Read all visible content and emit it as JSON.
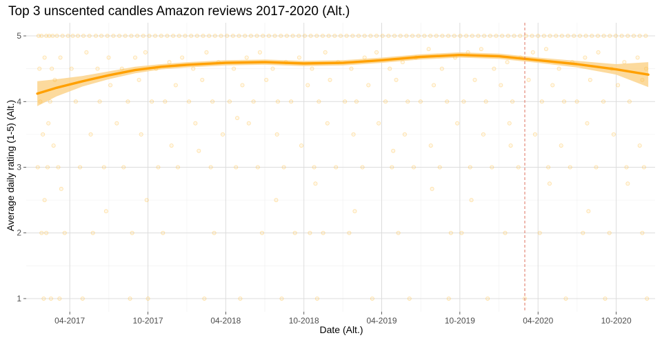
{
  "chart_data": {
    "type": "scatter",
    "title": "Top 3 unscented candles Amazon reviews 2017-2020 (Alt.)",
    "xlabel": "Date (Alt.)",
    "ylabel": "Average daily rating (1-5) (Alt.)",
    "xlim": [
      "2016-12-20",
      "2020-12-31"
    ],
    "ylim": [
      0.8,
      5.2
    ],
    "x_ticks": [
      "2017-04-01",
      "2017-10-01",
      "2018-04-01",
      "2018-10-01",
      "2019-04-01",
      "2019-10-01",
      "2020-04-01",
      "2020-10-01"
    ],
    "x_tick_labels": [
      "04-2017",
      "10-2017",
      "04-2018",
      "10-2018",
      "04-2019",
      "10-2019",
      "04-2020",
      "10-2020"
    ],
    "y_ticks": [
      1,
      2,
      3,
      4,
      5
    ],
    "y_tick_labels": [
      "1",
      "2",
      "3",
      "4",
      "5"
    ],
    "grid": true,
    "colors": {
      "points": "#ffbf40",
      "smooth_line": "#ffa000",
      "ribbon": "#fcd48c",
      "vline": "#e0725e"
    },
    "reference_line": {
      "x": "2020-03-01",
      "style": "dashed"
    },
    "smooth": {
      "x": [
        "2017-01-15",
        "2017-03-01",
        "2017-05-01",
        "2017-07-01",
        "2017-09-01",
        "2017-11-01",
        "2018-01-01",
        "2018-04-01",
        "2018-07-01",
        "2018-10-01",
        "2019-01-01",
        "2019-04-01",
        "2019-07-01",
        "2019-10-01",
        "2020-01-01",
        "2020-04-01",
        "2020-07-01",
        "2020-10-01",
        "2020-12-15"
      ],
      "y": [
        4.12,
        4.21,
        4.31,
        4.4,
        4.48,
        4.53,
        4.56,
        4.59,
        4.6,
        4.58,
        4.59,
        4.63,
        4.68,
        4.71,
        4.69,
        4.63,
        4.57,
        4.49,
        4.41
      ],
      "lower": [
        3.93,
        4.08,
        4.23,
        4.34,
        4.43,
        4.49,
        4.52,
        4.55,
        4.56,
        4.54,
        4.55,
        4.59,
        4.64,
        4.67,
        4.65,
        4.59,
        4.52,
        4.41,
        4.22
      ],
      "upper": [
        4.31,
        4.34,
        4.39,
        4.46,
        4.53,
        4.57,
        4.6,
        4.63,
        4.64,
        4.62,
        4.63,
        4.67,
        4.72,
        4.75,
        4.73,
        4.67,
        4.62,
        4.57,
        4.6
      ]
    },
    "points": {
      "x": [
        "2017-01-18",
        "2017-01-25",
        "2017-02-05",
        "2017-02-12",
        "2017-02-20",
        "2017-03-02",
        "2017-03-15",
        "2017-03-28",
        "2017-04-08",
        "2017-04-20",
        "2017-05-03",
        "2017-05-17",
        "2017-06-01",
        "2017-06-14",
        "2017-06-28",
        "2017-07-12",
        "2017-07-26",
        "2017-08-09",
        "2017-08-23",
        "2017-09-06",
        "2017-09-20",
        "2017-10-04",
        "2017-10-18",
        "2017-11-01",
        "2017-11-15",
        "2017-11-29",
        "2017-12-13",
        "2017-12-27",
        "2018-01-10",
        "2018-01-24",
        "2018-02-07",
        "2018-02-21",
        "2018-03-07",
        "2018-03-21",
        "2018-04-04",
        "2018-04-18",
        "2018-05-02",
        "2018-05-16",
        "2018-05-30",
        "2018-06-13",
        "2018-06-27",
        "2018-07-11",
        "2018-07-25",
        "2018-08-08",
        "2018-08-22",
        "2018-09-05",
        "2018-09-19",
        "2018-10-03",
        "2018-10-17",
        "2018-10-31",
        "2018-11-14",
        "2018-11-28",
        "2018-12-12",
        "2018-12-26",
        "2019-01-09",
        "2019-01-23",
        "2019-02-06",
        "2019-02-20",
        "2019-03-06",
        "2019-03-20",
        "2019-04-03",
        "2019-04-17",
        "2019-05-01",
        "2019-05-15",
        "2019-05-29",
        "2019-06-12",
        "2019-06-26",
        "2019-07-10",
        "2019-07-24",
        "2019-08-07",
        "2019-08-21",
        "2019-09-04",
        "2019-09-18",
        "2019-10-02",
        "2019-10-16",
        "2019-10-30",
        "2019-11-13",
        "2019-11-27",
        "2019-12-11",
        "2019-12-25",
        "2020-01-08",
        "2020-01-22",
        "2020-02-05",
        "2020-02-19",
        "2020-03-04",
        "2020-03-18",
        "2020-04-01",
        "2020-04-15",
        "2020-04-29",
        "2020-05-13",
        "2020-05-27",
        "2020-06-10",
        "2020-06-24",
        "2020-07-08",
        "2020-07-22",
        "2020-08-05",
        "2020-08-19",
        "2020-09-02",
        "2020-09-16",
        "2020-09-30",
        "2020-10-14",
        "2020-10-28",
        "2020-11-11",
        "2020-11-25",
        "2020-12-09",
        "2017-01-20",
        "2017-02-01",
        "2017-02-18",
        "2017-03-10",
        "2017-04-05",
        "2017-05-10",
        "2017-06-05",
        "2017-07-01",
        "2017-08-01",
        "2017-09-01",
        "2017-09-25",
        "2017-10-20",
        "2017-11-20",
        "2017-12-20",
        "2018-01-15",
        "2018-02-15",
        "2018-03-15",
        "2018-04-20",
        "2018-05-20",
        "2018-06-20",
        "2018-07-20",
        "2018-08-20",
        "2018-09-20",
        "2018-10-20",
        "2018-11-20",
        "2018-12-20",
        "2019-01-20",
        "2019-02-20",
        "2019-03-20",
        "2019-04-20",
        "2019-05-20",
        "2019-06-20",
        "2019-07-20",
        "2019-08-20",
        "2019-09-20",
        "2019-10-20",
        "2019-11-20",
        "2019-12-20",
        "2020-01-20",
        "2020-02-20",
        "2020-03-20",
        "2020-04-20",
        "2020-05-20",
        "2020-06-20",
        "2020-07-20",
        "2020-08-20",
        "2020-09-20",
        "2020-10-20",
        "2020-11-20",
        "2020-12-10",
        "2017-01-22",
        "2017-02-14",
        "2017-02-25",
        "2017-04-15",
        "2017-06-10",
        "2017-07-05",
        "2017-08-15",
        "2017-09-10",
        "2017-10-10",
        "2017-11-10",
        "2017-12-05",
        "2018-01-05",
        "2018-02-05",
        "2018-03-01",
        "2018-04-10",
        "2018-05-10",
        "2018-06-05",
        "2018-07-05",
        "2018-08-01",
        "2018-09-01",
        "2018-10-10",
        "2018-11-05",
        "2018-12-01",
        "2019-01-05",
        "2019-02-01",
        "2019-03-01",
        "2019-04-10",
        "2019-05-05",
        "2019-06-01",
        "2019-07-01",
        "2019-08-01",
        "2019-09-01",
        "2019-10-10",
        "2019-11-05",
        "2019-12-01",
        "2020-01-05",
        "2020-02-01",
        "2020-03-10",
        "2020-04-10",
        "2020-05-05",
        "2020-06-01",
        "2020-07-01",
        "2020-08-01",
        "2020-09-01",
        "2020-10-05",
        "2020-11-01",
        "2020-12-01",
        "2017-01-16",
        "2017-02-08",
        "2017-03-05",
        "2017-04-25",
        "2017-06-20",
        "2017-08-05",
        "2017-10-25",
        "2017-12-10",
        "2018-02-25",
        "2018-04-25",
        "2018-06-15",
        "2018-08-15",
        "2018-10-25",
        "2018-12-15",
        "2019-02-15",
        "2019-04-25",
        "2019-06-15",
        "2019-08-15",
        "2019-10-25",
        "2019-12-15",
        "2020-02-15",
        "2020-04-25",
        "2020-06-15",
        "2020-08-15",
        "2020-10-25",
        "2020-12-05",
        "2017-01-28",
        "2017-02-10",
        "2017-02-22",
        "2017-05-20",
        "2017-07-20",
        "2017-09-15",
        "2017-11-25",
        "2018-01-20",
        "2018-03-25",
        "2018-05-25",
        "2018-07-30",
        "2018-09-25",
        "2018-11-25",
        "2019-01-25",
        "2019-03-25",
        "2019-05-25",
        "2019-07-25",
        "2019-09-25",
        "2019-11-25",
        "2020-01-25",
        "2020-03-25",
        "2020-05-25",
        "2020-07-25",
        "2020-09-25",
        "2020-11-25",
        "2017-01-25",
        "2017-02-05",
        "2017-03-20",
        "2017-05-25",
        "2017-08-25",
        "2017-11-05",
        "2018-03-05",
        "2018-06-25",
        "2018-09-10",
        "2018-10-15",
        "2018-11-15",
        "2019-01-15",
        "2019-05-10",
        "2019-09-10",
        "2019-10-05",
        "2020-01-15",
        "2020-04-05",
        "2020-07-15",
        "2020-09-15",
        "2020-12-01",
        "2017-01-30",
        "2017-02-16",
        "2017-03-08",
        "2017-05-01",
        "2017-08-20",
        "2017-10-01",
        "2018-02-10",
        "2018-05-05",
        "2018-08-10",
        "2018-11-01",
        "2019-03-10",
        "2019-06-05",
        "2019-09-05",
        "2019-12-05",
        "2020-03-01",
        "2020-06-05",
        "2020-09-05",
        "2020-12-12",
        "2017-02-01",
        "2017-03-12",
        "2017-06-25",
        "2017-09-28",
        "2018-01-28",
        "2018-04-28",
        "2018-07-28",
        "2018-10-28",
        "2019-01-28",
        "2019-04-28",
        "2019-07-28",
        "2019-10-28",
        "2020-01-28",
        "2020-04-28",
        "2020-07-28",
        "2020-10-28"
      ],
      "y": [
        5,
        5,
        5,
        5,
        5,
        5,
        5,
        5,
        5,
        5,
        5,
        5,
        5,
        5,
        5,
        5,
        5,
        5,
        5,
        5,
        5,
        5,
        5,
        5,
        5,
        5,
        5,
        5,
        5,
        5,
        5,
        5,
        5,
        5,
        5,
        5,
        5,
        5,
        5,
        5,
        5,
        5,
        5,
        5,
        5,
        5,
        5,
        5,
        5,
        5,
        5,
        5,
        5,
        5,
        5,
        5,
        5,
        5,
        5,
        5,
        5,
        5,
        5,
        5,
        5,
        5,
        5,
        5,
        5,
        5,
        5,
        5,
        5,
        5,
        5,
        5,
        5,
        5,
        5,
        5,
        5,
        5,
        5,
        5,
        5,
        5,
        5,
        5,
        5,
        5,
        5,
        5,
        5,
        5,
        5,
        5,
        5,
        5,
        5,
        5,
        5,
        5,
        5,
        5,
        5,
        4.5,
        4.67,
        4.5,
        4.67,
        4.5,
        4.75,
        4.5,
        4.67,
        4.5,
        4.67,
        4.75,
        4.5,
        4.6,
        4.67,
        4.5,
        4.75,
        4.6,
        4.5,
        4.67,
        4.75,
        4.5,
        4.6,
        4.67,
        4.5,
        4.75,
        4.6,
        4.5,
        4.67,
        4.75,
        4.5,
        4.6,
        4.67,
        4.8,
        4.5,
        4.67,
        4.75,
        4.8,
        4.5,
        4.6,
        4.67,
        4.75,
        4.8,
        4.5,
        4.6,
        4.67,
        4.75,
        4.5,
        4.6,
        4.67,
        4.5,
        4,
        4,
        4.33,
        4,
        4,
        4.25,
        4,
        4.33,
        4,
        4,
        4.25,
        4,
        4.33,
        4,
        4,
        4.25,
        4,
        4.33,
        4,
        4,
        4.25,
        4,
        4.33,
        4,
        4,
        4.25,
        4,
        4.33,
        4,
        4,
        4.25,
        4,
        4,
        4.33,
        4,
        4.25,
        4,
        4.33,
        4,
        4.25,
        4,
        4,
        4.33,
        4,
        4.25,
        4,
        4.33,
        3,
        3,
        3,
        3,
        3,
        3,
        3,
        3,
        3,
        3,
        3,
        3,
        3,
        3,
        3,
        3,
        3,
        3,
        3,
        3,
        3,
        3,
        3,
        3,
        3,
        3,
        3.5,
        3.67,
        3.33,
        3.5,
        3.67,
        3.5,
        3.33,
        3.67,
        3.5,
        3.67,
        3.5,
        3.33,
        3.67,
        3.5,
        3.67,
        3.5,
        3.33,
        3.67,
        3.5,
        3.67,
        3.5,
        3.33,
        3.67,
        3.5,
        3.33,
        2,
        2,
        2,
        2,
        2,
        2,
        2,
        2,
        2,
        2,
        2,
        2,
        2,
        2,
        2,
        2,
        2,
        2,
        2,
        2,
        1,
        1,
        1,
        1,
        1,
        1,
        1,
        1,
        1,
        1,
        1,
        1,
        1,
        1,
        1,
        1,
        1,
        1,
        2.5,
        2.67,
        2.33,
        2.5,
        3.25,
        3.75,
        2.5,
        2.75,
        2.33,
        3.25,
        2.67,
        2.5,
        3.33,
        2.75,
        2.33,
        2.75
      ]
    }
  }
}
